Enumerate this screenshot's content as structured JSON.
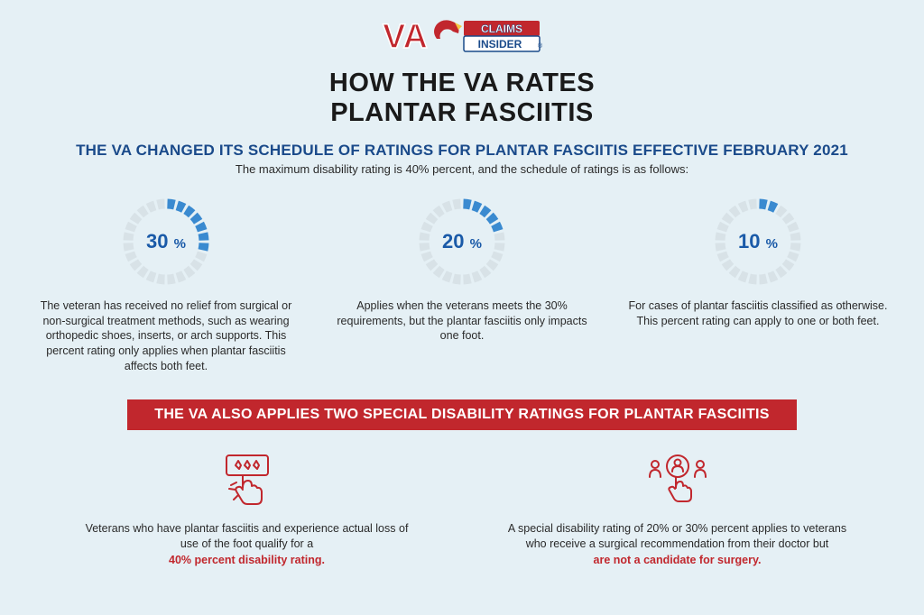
{
  "colors": {
    "background": "#e5f0f5",
    "accent_red": "#c1272d",
    "accent_blue": "#1a5aa8",
    "navy": "#1a4a8a",
    "gauge_track": "#d8e2e7",
    "gauge_fill": "#3a8ad0",
    "text": "#2a2a2a"
  },
  "logo": {
    "va_text": "VA",
    "claims_text": "CLAIMS",
    "insider_text": "INSIDER"
  },
  "title_line1": "HOW THE VA RATES",
  "title_line2": "PLANTAR FASCIITIS",
  "subtitle": "THE VA CHANGED ITS SCHEDULE OF RATINGS FOR PLANTAR FASCIITIS EFFECTIVE FEBRUARY 2021",
  "subtitle_desc": "The maximum disability rating is 40% percent, and the schedule of ratings is as follows:",
  "ratings": [
    {
      "value": 30,
      "label": "30",
      "desc": "The veteran has received no relief from surgical or non-surgical treatment methods, such as wearing orthopedic shoes, inserts, or arch supports. This percent rating only applies when plantar fasciitis affects both feet."
    },
    {
      "value": 20,
      "label": "20",
      "desc": "Applies when the veterans meets the 30% requirements, but the plantar fasciitis only impacts one foot."
    },
    {
      "value": 10,
      "label": "10",
      "desc": "For cases of plantar fasciitis classified as otherwise. This percent rating can apply to one or both feet."
    }
  ],
  "gauge": {
    "radius": 42,
    "stroke_width": 11,
    "track_color": "#d8e2e7",
    "fill_color": "#3a8ad0",
    "start_angle": -90,
    "segments": 24,
    "gap_deg": 4
  },
  "banner": "THE VA ALSO APPLIES TWO SPECIAL DISABILITY RATINGS FOR PLANTAR FASCIITIS",
  "specials": [
    {
      "icon": "rating-click-icon",
      "desc": "Veterans who have plantar fasciitis and experience actual loss of use of the foot qualify for a",
      "highlight": "40% percent disability rating."
    },
    {
      "icon": "select-person-icon",
      "desc": "A special disability rating of 20% or 30% percent applies to veterans who receive a surgical recommendation from their doctor but",
      "highlight": "are not a candidate for surgery."
    }
  ]
}
